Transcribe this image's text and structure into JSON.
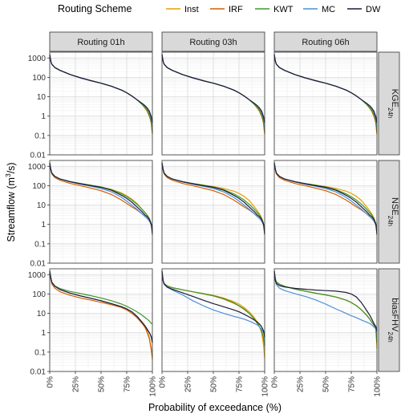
{
  "legend": {
    "title": "Routing Scheme",
    "items": [
      {
        "name": "Inst",
        "color": "#E69F00"
      },
      {
        "name": "IRF",
        "color": "#D55E00"
      },
      {
        "name": "KWT",
        "color": "#3C9A2E"
      },
      {
        "name": "MC",
        "color": "#4A90D9"
      },
      {
        "name": "DW",
        "color": "#1C1C3A"
      }
    ]
  },
  "chart_data": {
    "type": "line",
    "xlabel": "Probability of exceedance (%)",
    "ylabel": "Streamflow (m³/s)",
    "ylabel_parts": {
      "main": "Streamflow (m",
      "sup": "3",
      "tail": "/s)"
    },
    "y_scale": "log",
    "ylim": [
      0.01,
      2000
    ],
    "xlim": [
      0,
      100
    ],
    "x_ticks": [
      0,
      25,
      50,
      75,
      100
    ],
    "x_tick_labels": [
      "0%",
      "25%",
      "50%",
      "75%",
      "100%"
    ],
    "y_ticks": [
      0.01,
      0.1,
      1,
      10,
      100,
      1000
    ],
    "y_tick_labels": [
      "0.01",
      "0.1",
      "1",
      "10",
      "100",
      "1000"
    ],
    "col_labels": [
      "Routing 01h",
      "Routing 03h",
      "Routing 06h"
    ],
    "row_labels": [
      {
        "main": "KGE",
        "sub": "24h"
      },
      {
        "main": "NSE",
        "sub": "24h"
      },
      {
        "main": "biasFHV",
        "sub": "24h"
      }
    ],
    "series_names": [
      "Inst",
      "IRF",
      "KWT",
      "MC",
      "DW"
    ],
    "series_colors": [
      "#E69F00",
      "#D55E00",
      "#3C9A2E",
      "#4A90D9",
      "#1C1C3A"
    ],
    "x": [
      0,
      1,
      2,
      5,
      10,
      20,
      30,
      40,
      50,
      60,
      70,
      75,
      80,
      85,
      90,
      93,
      95,
      97,
      98,
      99,
      100
    ],
    "panels": [
      [
        [
          [
            1500,
            700,
            480,
            320,
            230,
            140,
            95,
            68,
            50,
            35,
            22,
            16,
            11,
            7,
            4,
            2.5,
            1.7,
            1.0,
            0.7,
            0.4,
            0.12
          ],
          [
            1500,
            700,
            480,
            320,
            230,
            140,
            95,
            68,
            50,
            35,
            22,
            16,
            11,
            7,
            4,
            2.6,
            1.8,
            1.0,
            0.7,
            0.4,
            0.12
          ],
          [
            1500,
            700,
            480,
            320,
            230,
            140,
            95,
            68,
            50,
            35,
            22,
            16,
            11,
            7,
            4,
            2.8,
            2.0,
            1.2,
            0.85,
            0.5,
            0.18
          ],
          [
            1500,
            700,
            480,
            320,
            230,
            140,
            95,
            68,
            50,
            35,
            22,
            16,
            11,
            7,
            4.5,
            3.2,
            2.5,
            1.6,
            1.1,
            0.7,
            0.3
          ],
          [
            1500,
            700,
            480,
            320,
            230,
            140,
            95,
            68,
            50,
            35,
            22,
            16,
            11,
            7,
            4.5,
            3.4,
            2.6,
            1.8,
            1.3,
            0.9,
            0.45
          ]
        ],
        [
          [
            1500,
            700,
            480,
            320,
            230,
            140,
            95,
            68,
            50,
            35,
            22,
            16,
            11,
            7,
            4,
            2.5,
            1.7,
            1.0,
            0.7,
            0.4,
            0.12
          ],
          [
            1500,
            700,
            480,
            320,
            230,
            140,
            95,
            68,
            50,
            35,
            22,
            16,
            11,
            7,
            4,
            2.6,
            1.8,
            1.0,
            0.7,
            0.4,
            0.12
          ],
          [
            1500,
            700,
            480,
            320,
            230,
            140,
            95,
            68,
            50,
            35,
            22,
            16,
            11,
            7,
            4,
            2.8,
            2.0,
            1.2,
            0.85,
            0.5,
            0.18
          ],
          [
            1500,
            700,
            480,
            320,
            230,
            140,
            95,
            68,
            50,
            35,
            22,
            16,
            11,
            7,
            4.5,
            3.2,
            2.5,
            1.6,
            1.1,
            0.7,
            0.3
          ],
          [
            1500,
            700,
            480,
            320,
            230,
            140,
            95,
            68,
            50,
            35,
            22,
            16,
            11,
            7,
            4.5,
            3.4,
            2.6,
            1.8,
            1.3,
            0.9,
            0.45
          ]
        ],
        [
          [
            1500,
            700,
            480,
            320,
            230,
            140,
            95,
            68,
            50,
            35,
            22,
            16,
            11,
            7,
            4,
            2.5,
            1.7,
            1.0,
            0.7,
            0.4,
            0.12
          ],
          [
            1500,
            700,
            480,
            320,
            230,
            140,
            95,
            68,
            50,
            35,
            22,
            16,
            11,
            7,
            4,
            2.6,
            1.8,
            1.0,
            0.7,
            0.4,
            0.12
          ],
          [
            1500,
            700,
            480,
            320,
            230,
            140,
            95,
            68,
            50,
            35,
            22,
            16,
            11,
            7,
            4,
            2.8,
            2.0,
            1.2,
            0.85,
            0.5,
            0.18
          ],
          [
            1500,
            700,
            480,
            320,
            230,
            140,
            95,
            68,
            50,
            35,
            22,
            16,
            11,
            7,
            4.5,
            3.2,
            2.5,
            1.6,
            1.1,
            0.7,
            0.3
          ],
          [
            1500,
            700,
            480,
            320,
            230,
            140,
            95,
            68,
            50,
            35,
            22,
            16,
            11,
            7,
            4.5,
            3.4,
            2.6,
            1.8,
            1.3,
            0.9,
            0.45
          ]
        ]
      ],
      [
        [
          [
            1500,
            700,
            450,
            300,
            220,
            160,
            130,
            105,
            85,
            65,
            42,
            30,
            20,
            12,
            6,
            4,
            3,
            2,
            1.5,
            1,
            0.5
          ],
          [
            1500,
            650,
            400,
            260,
            190,
            130,
            100,
            75,
            55,
            35,
            18,
            12,
            8,
            5.5,
            3.5,
            2.5,
            2,
            1.5,
            1.2,
            0.9,
            0.5
          ],
          [
            1500,
            700,
            450,
            300,
            220,
            160,
            130,
            105,
            85,
            62,
            38,
            27,
            18,
            11,
            6,
            4,
            3,
            2,
            1.5,
            1,
            0.5
          ],
          [
            1500,
            700,
            450,
            300,
            220,
            155,
            120,
            95,
            72,
            48,
            25,
            16,
            10,
            6,
            3.5,
            2.5,
            2,
            1.5,
            1.2,
            0.9,
            0.5
          ],
          [
            1500,
            700,
            450,
            300,
            220,
            160,
            125,
            100,
            82,
            58,
            32,
            22,
            14,
            8,
            4.5,
            3,
            2.5,
            1.8,
            1.4,
            1,
            0.3
          ]
        ],
        [
          [
            1500,
            700,
            450,
            300,
            220,
            160,
            130,
            108,
            90,
            72,
            52,
            40,
            28,
            17,
            8,
            5,
            3.5,
            2.2,
            1.6,
            1.1,
            0.3
          ],
          [
            1500,
            650,
            400,
            260,
            190,
            130,
            100,
            75,
            55,
            35,
            18,
            12,
            8,
            5.5,
            3.5,
            2.5,
            2,
            1.5,
            1.2,
            0.9,
            0.5
          ],
          [
            1500,
            700,
            450,
            300,
            220,
            160,
            130,
            105,
            85,
            62,
            38,
            27,
            18,
            11,
            6,
            4,
            3,
            2,
            1.5,
            1,
            0.5
          ],
          [
            1500,
            700,
            450,
            300,
            220,
            155,
            120,
            95,
            72,
            48,
            25,
            16,
            10,
            6,
            3.5,
            2.5,
            2,
            1.5,
            1.2,
            0.9,
            0.5
          ],
          [
            1500,
            700,
            450,
            300,
            220,
            160,
            125,
            100,
            82,
            58,
            32,
            22,
            14,
            8,
            4.5,
            3,
            2.5,
            1.8,
            1.4,
            1,
            0.3
          ]
        ],
        [
          [
            1500,
            700,
            450,
            300,
            220,
            160,
            130,
            108,
            90,
            72,
            52,
            40,
            28,
            17,
            8,
            5,
            3.5,
            2.2,
            1.6,
            1.1,
            0.3
          ],
          [
            1500,
            650,
            400,
            260,
            190,
            130,
            100,
            75,
            55,
            35,
            18,
            12,
            8,
            5.5,
            3.5,
            2.5,
            2,
            1.5,
            1.2,
            0.9,
            0.5
          ],
          [
            1500,
            700,
            450,
            300,
            220,
            160,
            130,
            105,
            85,
            62,
            38,
            27,
            18,
            11,
            6,
            4,
            3,
            2,
            1.5,
            1,
            0.5
          ],
          [
            1500,
            700,
            450,
            300,
            220,
            155,
            120,
            95,
            72,
            48,
            25,
            16,
            10,
            6,
            3.5,
            2.5,
            2,
            1.5,
            1.2,
            0.9,
            0.5
          ],
          [
            1500,
            700,
            450,
            300,
            220,
            160,
            125,
            100,
            82,
            58,
            32,
            22,
            14,
            8,
            4.5,
            3,
            2.5,
            1.8,
            1.4,
            1,
            0.3
          ]
        ]
      ],
      [
        [
          [
            1500,
            700,
            400,
            250,
            170,
            110,
            80,
            60,
            45,
            32,
            22,
            17,
            12,
            7,
            3.5,
            2,
            1.2,
            0.6,
            0.3,
            0.15,
            0.04
          ],
          [
            1500,
            600,
            330,
            200,
            130,
            85,
            62,
            48,
            37,
            28,
            20,
            15,
            10,
            6,
            3,
            1.8,
            1,
            0.5,
            0.25,
            0.12,
            0.05
          ],
          [
            1500,
            700,
            400,
            260,
            190,
            135,
            105,
            82,
            62,
            45,
            30,
            23,
            17,
            12,
            8,
            6,
            5,
            4,
            3.5,
            3,
            3
          ],
          [
            1500,
            700,
            400,
            250,
            170,
            110,
            80,
            60,
            45,
            32,
            22,
            17,
            12,
            7,
            3.5,
            2.2,
            1.5,
            1,
            0.8,
            0.6,
            0.3
          ],
          [
            1500,
            700,
            400,
            250,
            170,
            110,
            80,
            60,
            45,
            32,
            22,
            17,
            12,
            7,
            3.5,
            2.2,
            1.5,
            1,
            0.8,
            0.6,
            0.3
          ]
        ],
        [
          [
            1500,
            500,
            350,
            260,
            210,
            165,
            130,
            105,
            85,
            62,
            40,
            30,
            20,
            12,
            6,
            3.5,
            2,
            1,
            0.5,
            0.2,
            0.05
          ],
          [
            1500,
            500,
            350,
            260,
            210,
            165,
            130,
            102,
            80,
            55,
            33,
            24,
            16,
            10,
            5,
            3,
            2,
            1.2,
            0.8,
            0.5,
            0.2
          ],
          [
            1500,
            500,
            350,
            260,
            210,
            165,
            130,
            105,
            82,
            58,
            35,
            25,
            17,
            10,
            5,
            3,
            2,
            1.2,
            0.8,
            0.5,
            0.2
          ],
          [
            1500,
            500,
            320,
            220,
            160,
            90,
            45,
            25,
            15,
            10,
            7,
            6,
            5,
            4,
            3,
            2.5,
            2,
            1.5,
            1.2,
            1,
            0.5
          ],
          [
            1500,
            500,
            330,
            230,
            175,
            115,
            75,
            48,
            32,
            22,
            15,
            12,
            9,
            6.5,
            4.5,
            3.5,
            2.8,
            2,
            1.6,
            1.2,
            0.6
          ]
        ],
        [
          [
            1500,
            600,
            420,
            320,
            250,
            180,
            140,
            110,
            90,
            70,
            48,
            36,
            25,
            15,
            8,
            5,
            3.5,
            2.5,
            2,
            1.5,
            0.15
          ],
          [
            1500,
            600,
            420,
            320,
            250,
            180,
            140,
            110,
            90,
            70,
            48,
            36,
            25,
            15,
            8,
            5,
            3.5,
            2.5,
            2,
            1.5,
            0.3
          ],
          [
            1500,
            600,
            420,
            320,
            250,
            180,
            140,
            110,
            90,
            70,
            48,
            36,
            25,
            15,
            8,
            5,
            3.5,
            2.5,
            2,
            1.5,
            0.3
          ],
          [
            1500,
            500,
            300,
            200,
            150,
            105,
            75,
            50,
            30,
            17,
            10,
            7.5,
            6,
            4.5,
            3.5,
            3,
            2.5,
            2,
            1.8,
            1.5,
            1
          ],
          [
            1500,
            500,
            350,
            270,
            230,
            195,
            175,
            160,
            150,
            140,
            120,
            100,
            70,
            35,
            14,
            8,
            5,
            3,
            2.5,
            2,
            1.2
          ]
        ]
      ]
    ]
  }
}
